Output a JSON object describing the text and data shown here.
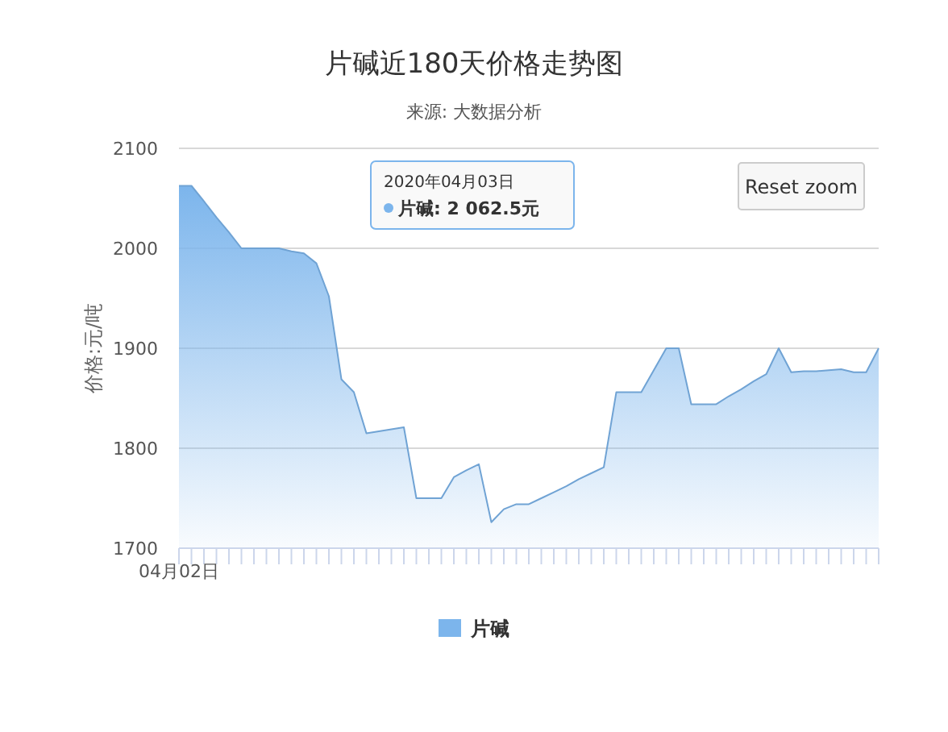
{
  "chart_data": {
    "type": "area",
    "title": "片碱近180天价格走势图",
    "subtitle": "来源: 大数据分析",
    "ylabel": "价格:元/吨",
    "annotations": [
      "2020年04月03日",
      "片碱: 2 062.5元",
      "Reset zoom"
    ],
    "categories": [
      "04月02日",
      null,
      null,
      null,
      null,
      null,
      null,
      null,
      null,
      null,
      null,
      null,
      null,
      null,
      null,
      null,
      null,
      null,
      null,
      null,
      null,
      null,
      null,
      null,
      null,
      null,
      null,
      null,
      null,
      null,
      null,
      null,
      null,
      null,
      null,
      null,
      null,
      null,
      null,
      null,
      null,
      null,
      null,
      null,
      null,
      null,
      null,
      null,
      null,
      null,
      null,
      null,
      null,
      null,
      null,
      null,
      null
    ],
    "series": [
      {
        "name": "片碱",
        "color": "#7cb5ec",
        "values": [
          2062.5,
          2062.5,
          2047,
          2031,
          2016,
          2000,
          2000,
          2000,
          2000,
          1997,
          1995,
          1985,
          1952,
          1869,
          1856,
          1815,
          1817,
          1819,
          1821,
          1750,
          1750,
          1750,
          1771,
          1778,
          1784,
          1726,
          1739,
          1744,
          1744,
          1750,
          1756,
          1762,
          1769,
          1775,
          1781,
          1856,
          1856,
          1856,
          1878,
          1900,
          1900,
          1844,
          1844,
          1844,
          1852,
          1859,
          1867,
          1874,
          1900,
          1876,
          1877,
          1877,
          1878,
          1879,
          1876,
          1876,
          1900
        ]
      }
    ],
    "ylim": [
      1700,
      2100
    ],
    "yticks": [
      1700,
      1800,
      1900,
      2000,
      2100
    ],
    "grid": "y",
    "legend": "bottom"
  }
}
